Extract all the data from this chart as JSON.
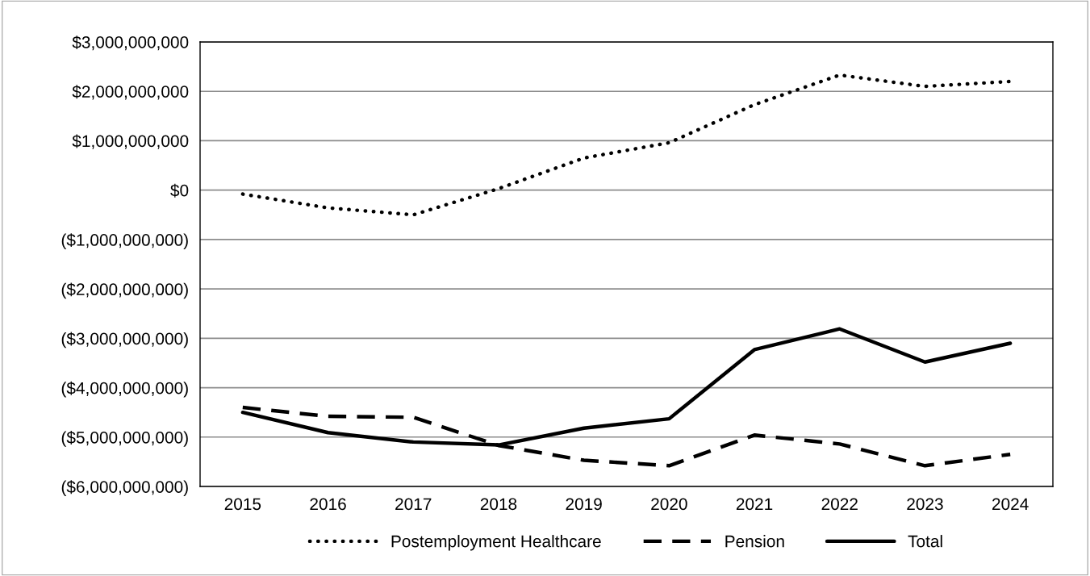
{
  "chart_data": {
    "type": "line",
    "categories": [
      "2015",
      "2016",
      "2017",
      "2018",
      "2019",
      "2020",
      "2021",
      "2022",
      "2023",
      "2024"
    ],
    "series": [
      {
        "name": "Postemployment Healthcare",
        "color": "#000000",
        "line_style": "dotted",
        "values": [
          -80000000,
          -360000000,
          -500000000,
          30000000,
          650000000,
          960000000,
          1730000000,
          2330000000,
          2100000000,
          2200000000
        ]
      },
      {
        "name": "Pension",
        "color": "#000000",
        "line_style": "dashed",
        "values": [
          -4400000000,
          -4580000000,
          -4600000000,
          -5170000000,
          -5470000000,
          -5580000000,
          -4960000000,
          -5140000000,
          -5580000000,
          -5350000000
        ]
      },
      {
        "name": "Total",
        "color": "#000000",
        "line_style": "solid",
        "values": [
          -4500000000,
          -4910000000,
          -5100000000,
          -5160000000,
          -4820000000,
          -4630000000,
          -3230000000,
          -2810000000,
          -3480000000,
          -3100000000
        ]
      }
    ],
    "ylim": [
      -6000000000,
      3000000000
    ],
    "yticks": [
      {
        "value": -6000000000,
        "label": "($6,000,000,000)"
      },
      {
        "value": -5000000000,
        "label": "($5,000,000,000)"
      },
      {
        "value": -4000000000,
        "label": "($4,000,000,000)"
      },
      {
        "value": -3000000000,
        "label": "($3,000,000,000)"
      },
      {
        "value": -2000000000,
        "label": "($2,000,000,000)"
      },
      {
        "value": -1000000000,
        "label": "($1,000,000,000)"
      },
      {
        "value": 0,
        "label": "$0"
      },
      {
        "value": 1000000000,
        "label": "$1,000,000,000"
      },
      {
        "value": 2000000000,
        "label": "$2,000,000,000"
      },
      {
        "value": 3000000000,
        "label": "$3,000,000,000"
      }
    ],
    "grid": "y",
    "legend": "bottom",
    "marker": "none"
  }
}
